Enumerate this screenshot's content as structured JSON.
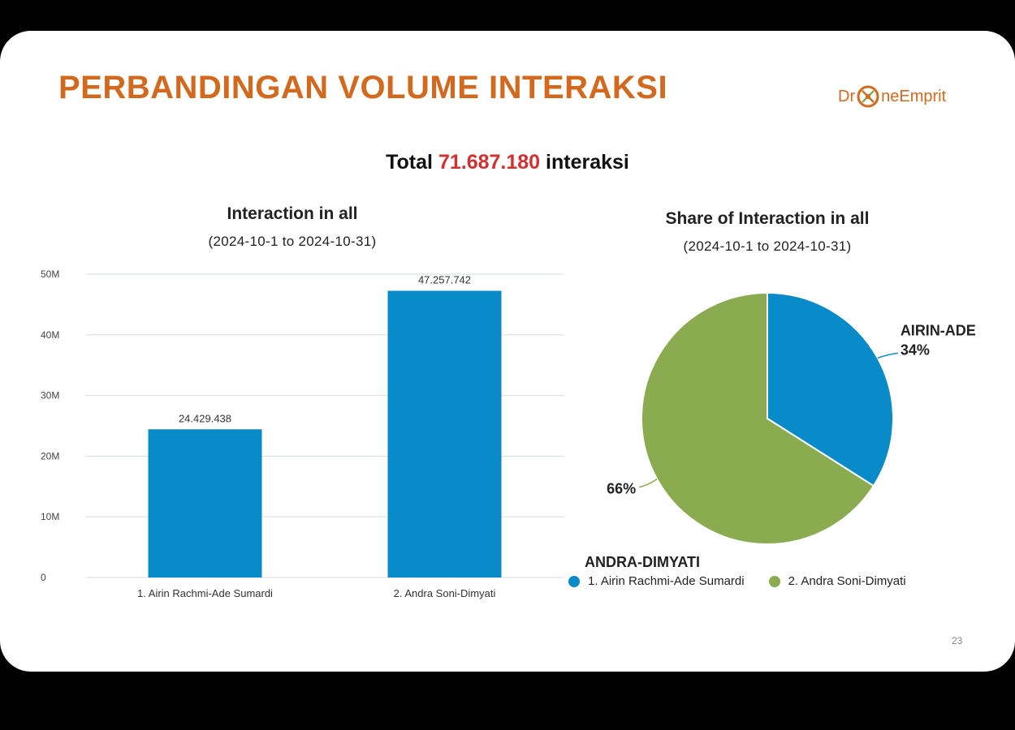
{
  "slide": {
    "title": "PERBANDINGAN VOLUME INTERAKSI",
    "logo": {
      "prefix": "Dr",
      "suffix": "neEmprit",
      "icon": "drone-icon",
      "color": "#d2691e"
    },
    "total": {
      "prefix": "Total",
      "value": "71.687.180",
      "suffix": "interaksi"
    },
    "page_number": "23"
  },
  "chart_data": [
    {
      "type": "bar",
      "title": "Interaction in all",
      "subtitle": "(2024-10-1 to 2024-10-31)",
      "categories": [
        "1. Airin Rachmi-Ade Sumardi",
        "2. Andra Soni-Dimyati"
      ],
      "values": [
        24429438,
        47257742
      ],
      "data_labels": [
        "24.429.438",
        "47.257.742"
      ],
      "y_ticks": [
        0,
        10000000,
        20000000,
        30000000,
        40000000,
        50000000
      ],
      "y_tick_labels": [
        "0",
        "10M",
        "20M",
        "30M",
        "40M",
        "50M"
      ],
      "ylim": [
        0,
        50000000
      ],
      "grid": true,
      "color": "#0a8bc9"
    },
    {
      "type": "pie",
      "title": "Share of Interaction in all",
      "subtitle": "(2024-10-1 to 2024-10-31)",
      "slices": [
        {
          "name": "1. Airin Rachmi-Ade Sumardi",
          "label": "AIRIN-ADE",
          "value": 34,
          "percent_label": "34%",
          "color": "#0a8bc9"
        },
        {
          "name": "2. Andra Soni-Dimyati",
          "label": "ANDRA-DIMYATI",
          "value": 66,
          "percent_label": "66%",
          "color": "#8aab4f"
        }
      ],
      "legend_position": "bottom"
    }
  ]
}
